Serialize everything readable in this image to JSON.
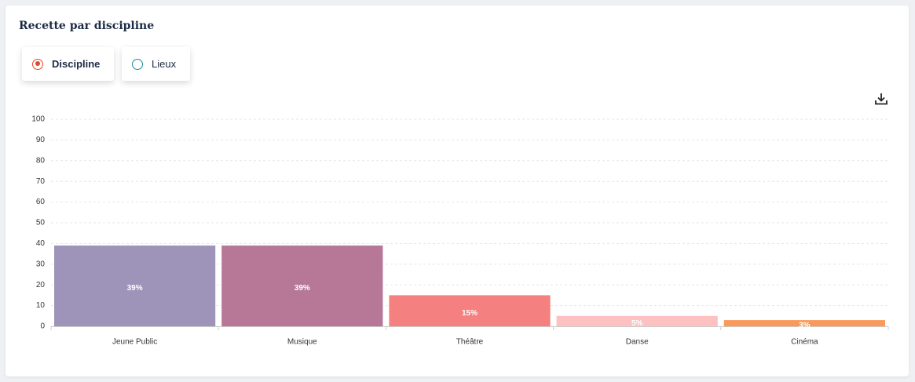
{
  "card": {
    "title": "Recette par discipline",
    "options": [
      "Discipline",
      "Lieux"
    ]
  },
  "chart_data": {
    "type": "bar",
    "categories": [
      "Jeune Public",
      "Musique",
      "Théâtre",
      "Danse",
      "Cinéma"
    ],
    "values": [
      39,
      39,
      15,
      5,
      3
    ],
    "value_labels": [
      "39%",
      "39%",
      "15%",
      "5%",
      "3%"
    ],
    "colors": [
      "#9e94b9",
      "#b67896",
      "#f48080",
      "#fdc1c1",
      "#f99a5b"
    ],
    "ylim": [
      0,
      100
    ],
    "yticks": [
      0,
      10,
      20,
      30,
      40,
      50,
      60,
      70,
      80,
      90,
      100
    ],
    "grid": true
  }
}
